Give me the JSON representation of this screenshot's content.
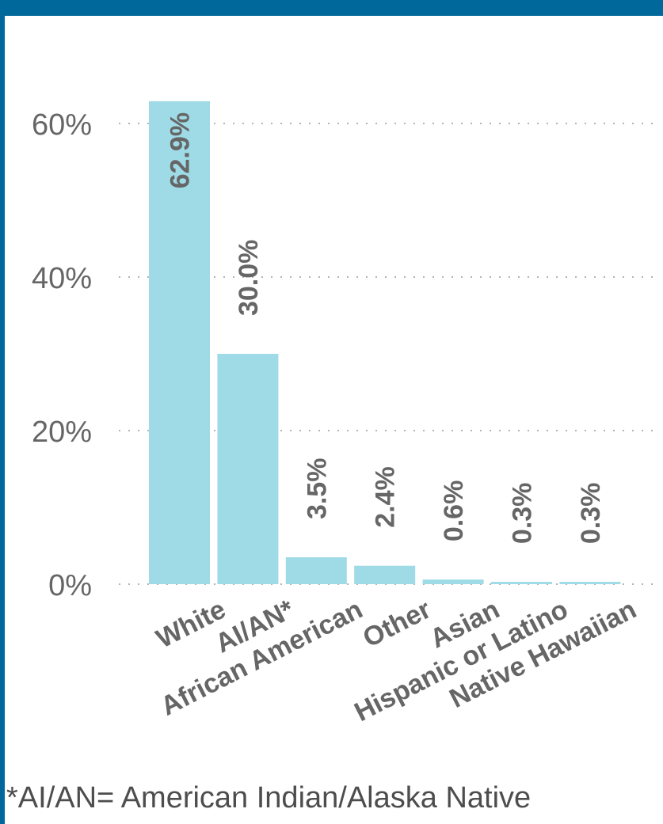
{
  "frame": {
    "accent_color": "#00689a"
  },
  "chart_data": {
    "type": "bar",
    "categories": [
      "White",
      "AI/AN*",
      "African American",
      "Other",
      "Asian",
      "Hispanic or Latino",
      "Native Hawaiian"
    ],
    "values": [
      62.9,
      30.0,
      3.5,
      2.4,
      0.6,
      0.3,
      0.3
    ],
    "value_labels": [
      "62.9%",
      "30.0%",
      "3.5%",
      "2.4%",
      "0.6%",
      "0.3%",
      "0.3%"
    ],
    "y_ticks": [
      {
        "value": 0,
        "label": "0%"
      },
      {
        "value": 20,
        "label": "20%"
      },
      {
        "value": 40,
        "label": "40%"
      },
      {
        "value": 60,
        "label": "60%"
      }
    ],
    "ylim": [
      0,
      65
    ],
    "grid": true,
    "bar_color": "#9edbe6",
    "label_color": "#666666"
  },
  "footnote": "*AI/AN= American Indian/Alaska Native"
}
